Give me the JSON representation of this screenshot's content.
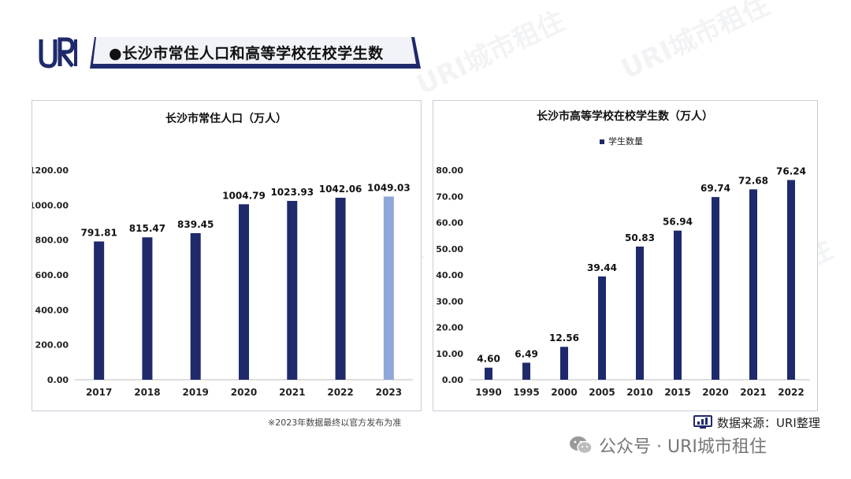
{
  "logo_text": "URI",
  "banner": {
    "bullet": "●",
    "title": "长沙市常住人口和高等学校在校学生数"
  },
  "chart_data": [
    {
      "type": "bar",
      "title": "长沙市常住人口（万人）",
      "categories": [
        "2017",
        "2018",
        "2019",
        "2020",
        "2021",
        "2022",
        "2023"
      ],
      "values": [
        791.81,
        815.47,
        839.45,
        1004.79,
        1023.93,
        1042.06,
        1049.03
      ],
      "data_labels": [
        "791.81",
        "815.47",
        "839.45",
        "1004.79",
        "1023.93",
        "1042.06",
        "1049.03"
      ],
      "ylim": [
        0,
        1200
      ],
      "yticks": [
        "0.00",
        "200.00",
        "400.00",
        "600.00",
        "800.00",
        "1000.00",
        "1200.00"
      ],
      "ytick_values": [
        0,
        200,
        400,
        600,
        800,
        1000,
        1200
      ],
      "bar_colors": [
        "#1e2a6b",
        "#1e2a6b",
        "#1e2a6b",
        "#1e2a6b",
        "#1e2a6b",
        "#1e2a6b",
        "#8fa8d8"
      ],
      "grid": false
    },
    {
      "type": "bar",
      "title": "长沙市高等学校在校学生数（万人）",
      "legend": [
        "学生数量"
      ],
      "legend_position": "top-center",
      "categories": [
        "1990",
        "1995",
        "2000",
        "2005",
        "2010",
        "2015",
        "2020",
        "2021",
        "2022"
      ],
      "values": [
        4.6,
        6.49,
        12.56,
        39.44,
        50.83,
        56.94,
        69.74,
        72.68,
        76.24
      ],
      "data_labels": [
        "4.60",
        "6.49",
        "12.56",
        "39.44",
        "50.83",
        "56.94",
        "69.74",
        "72.68",
        "76.24"
      ],
      "ylim": [
        0,
        80
      ],
      "yticks": [
        "0.00",
        "10.00",
        "20.00",
        "30.00",
        "40.00",
        "50.00",
        "60.00",
        "70.00",
        "80.00"
      ],
      "ytick_values": [
        0,
        10,
        20,
        30,
        40,
        50,
        60,
        70,
        80
      ],
      "bar_color": "#1e2a6b",
      "grid": false
    }
  ],
  "footnote": "※2023年数据最终以官方发布为准",
  "source_text": "数据来源：URI整理",
  "wechat_text": "公众号 · URI城市租住",
  "watermark_text": "URI城市租住",
  "colors": {
    "navy": "#1e2a6b",
    "light_bar": "#8fa8d8",
    "banner_fill": "#eef1f7",
    "banner_border": "#1e2a6b"
  }
}
